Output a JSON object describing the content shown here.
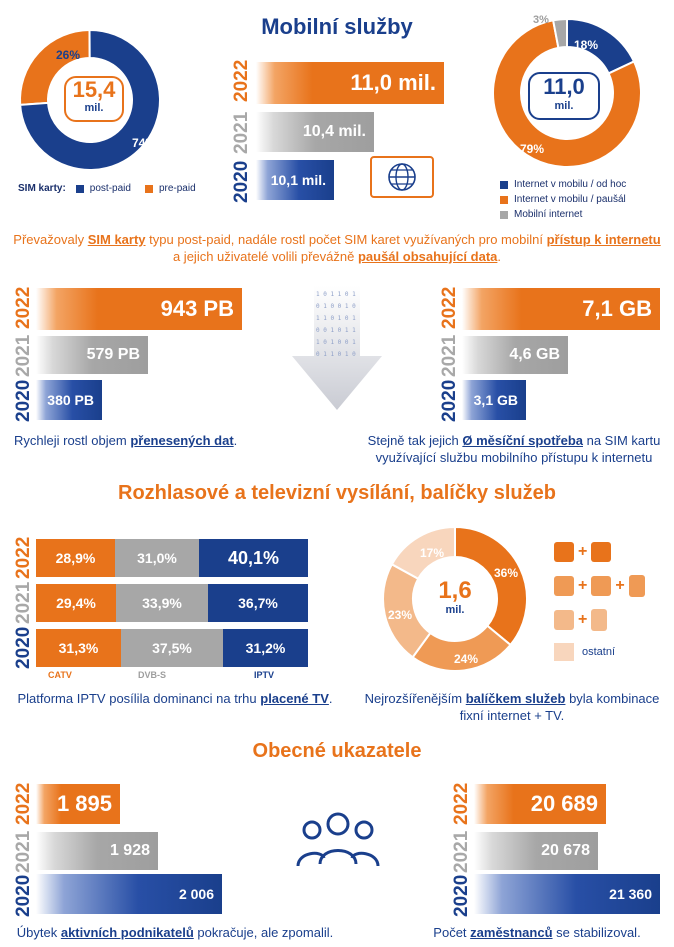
{
  "colors": {
    "orange": "#e8731b",
    "blue": "#1a3f8c",
    "gray": "#a7a7a7",
    "light": "#f7c9a8"
  },
  "section1": {
    "title": "Mobilní služby",
    "sim_donut": {
      "center_value": "15,4",
      "center_unit": "mil.",
      "label_a": "26%",
      "label_b": "74%",
      "legend_title": "SIM karty:",
      "legend_a": "post-paid",
      "legend_b": "pre-paid"
    },
    "sim_bars": {
      "y2022": "2022",
      "y2021": "2021",
      "y2020": "2020",
      "v2022": "11,0 mil.",
      "v2021": "10,4 mil.",
      "v2020": "10,1 mil."
    },
    "internet_donut": {
      "center_value": "11,0",
      "center_unit": "mil.",
      "label_a": "18%",
      "label_b": "79%",
      "label_c": "3%",
      "legend_a": "Internet v mobilu / od hoc",
      "legend_b": "Internet v mobilu / paušál",
      "legend_c": "Mobilní internet"
    },
    "caption_parts": [
      "Převažovaly ",
      "SIM karty",
      " typu post-paid, nadále rostl počet SIM karet využívaných pro mobilní ",
      "přístup k internetu",
      "a jejich uživatelé volili převážně ",
      "paušál obsahující data",
      "."
    ]
  },
  "data_bars": {
    "left": {
      "v2022": "943 PB",
      "v2021": "579 PB",
      "v2020": "380 PB"
    },
    "right": {
      "v2022": "7,1 GB",
      "v2021": "4,6 GB",
      "v2020": "3,1 GB"
    },
    "left_caption": [
      "Rychleji rostl objem ",
      "přenesených dat",
      "."
    ],
    "right_caption": [
      "Stejně tak jejich ",
      "Ø měsíční spotřeba",
      " na SIM kartu",
      "využívající službu mobilního přístupu k internetu"
    ]
  },
  "section2": {
    "title": "Rozhlasové a televizní vysílání, balíčky služeb",
    "rows": [
      {
        "year": "2022",
        "catv": "28,9%",
        "dvbs": "31,0%",
        "iptv": "40,1%"
      },
      {
        "year": "2021",
        "catv": "29,4%",
        "dvbs": "33,9%",
        "iptv": "36,7%"
      },
      {
        "year": "2020",
        "catv": "31,3%",
        "dvbs": "37,5%",
        "iptv": "31,2%"
      }
    ],
    "labels": {
      "catv": "CATV",
      "dvbs": "DVB-S",
      "iptv": "IPTV"
    },
    "left_caption": [
      "Platforma IPTV posílila dominanci na trhu ",
      "placené TV",
      "."
    ],
    "bundle_donut": {
      "center_value": "1,6",
      "center_unit": "mil.",
      "p36": "36%",
      "p24": "24%",
      "p23": "23%",
      "p17": "17%",
      "other": "ostatní",
      "plus": "+"
    },
    "right_caption": [
      "Nejrozšířenějším ",
      "balíčkem služeb",
      " byla kombinace",
      "fixní internet + TV."
    ]
  },
  "section3": {
    "title": "Obecné ukazatele",
    "left": {
      "v2022": "1 895",
      "v2021": "1 928",
      "v2020": "2 006"
    },
    "right": {
      "v2022": "20 689",
      "v2021": "20 678",
      "v2020": "21 360"
    },
    "left_caption": [
      "Úbytek ",
      "aktivních podnikatelů",
      " pokračuje, ale zpomalil."
    ],
    "right_caption": [
      "Počet ",
      "zaměstnanců",
      " se stabilizoval."
    ]
  },
  "chart_data": [
    {
      "type": "pie",
      "categories": [
        "post-paid",
        "pre-paid"
      ],
      "values": [
        74,
        26
      ]
    },
    {
      "type": "bar",
      "categories": [
        "2022",
        "2021",
        "2020"
      ],
      "values": [
        11.0,
        10.4,
        10.1
      ]
    },
    {
      "type": "pie",
      "categories": [
        "Internet v mobilu / od hoc",
        "Internet v mobilu / paušál",
        "Mobilní internet"
      ],
      "values": [
        18,
        79,
        3
      ]
    },
    {
      "type": "bar",
      "categories": [
        "2022",
        "2021",
        "2020"
      ],
      "values": [
        943,
        579,
        380
      ]
    },
    {
      "type": "bar",
      "categories": [
        "2022",
        "2021",
        "2020"
      ],
      "values": [
        7.1,
        4.6,
        3.1
      ]
    },
    {
      "type": "bar",
      "categories": [
        "2022",
        "2021",
        "2020"
      ],
      "series": [
        {
          "name": "CATV",
          "values": [
            28.9,
            29.4,
            31.3
          ]
        },
        {
          "name": "DVB-S",
          "values": [
            31.0,
            33.9,
            37.5
          ]
        },
        {
          "name": "IPTV",
          "values": [
            40.1,
            36.7,
            31.2
          ]
        }
      ]
    },
    {
      "type": "pie",
      "categories": [
        "",
        "",
        "",
        "ostatní"
      ],
      "values": [
        36,
        24,
        23,
        17
      ]
    },
    {
      "type": "bar",
      "categories": [
        "2022",
        "2021",
        "2020"
      ],
      "values": [
        1895,
        1928,
        2006
      ]
    },
    {
      "type": "bar",
      "categories": [
        "2022",
        "2021",
        "2020"
      ],
      "values": [
        20689,
        20678,
        21360
      ]
    }
  ]
}
